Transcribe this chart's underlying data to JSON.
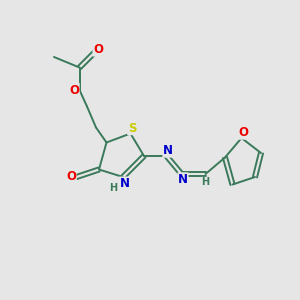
{
  "bg_color": "#e6e6e6",
  "atom_colors": {
    "C": "#3a7a5a",
    "N": "#0000cc",
    "O": "#ee0000",
    "S": "#cccc00",
    "H": "#3a7a5a"
  },
  "bond_color": "#3a7a5a",
  "font_size_atoms": 8.5,
  "fig_size": [
    3.0,
    3.0
  ],
  "dpi": 100
}
